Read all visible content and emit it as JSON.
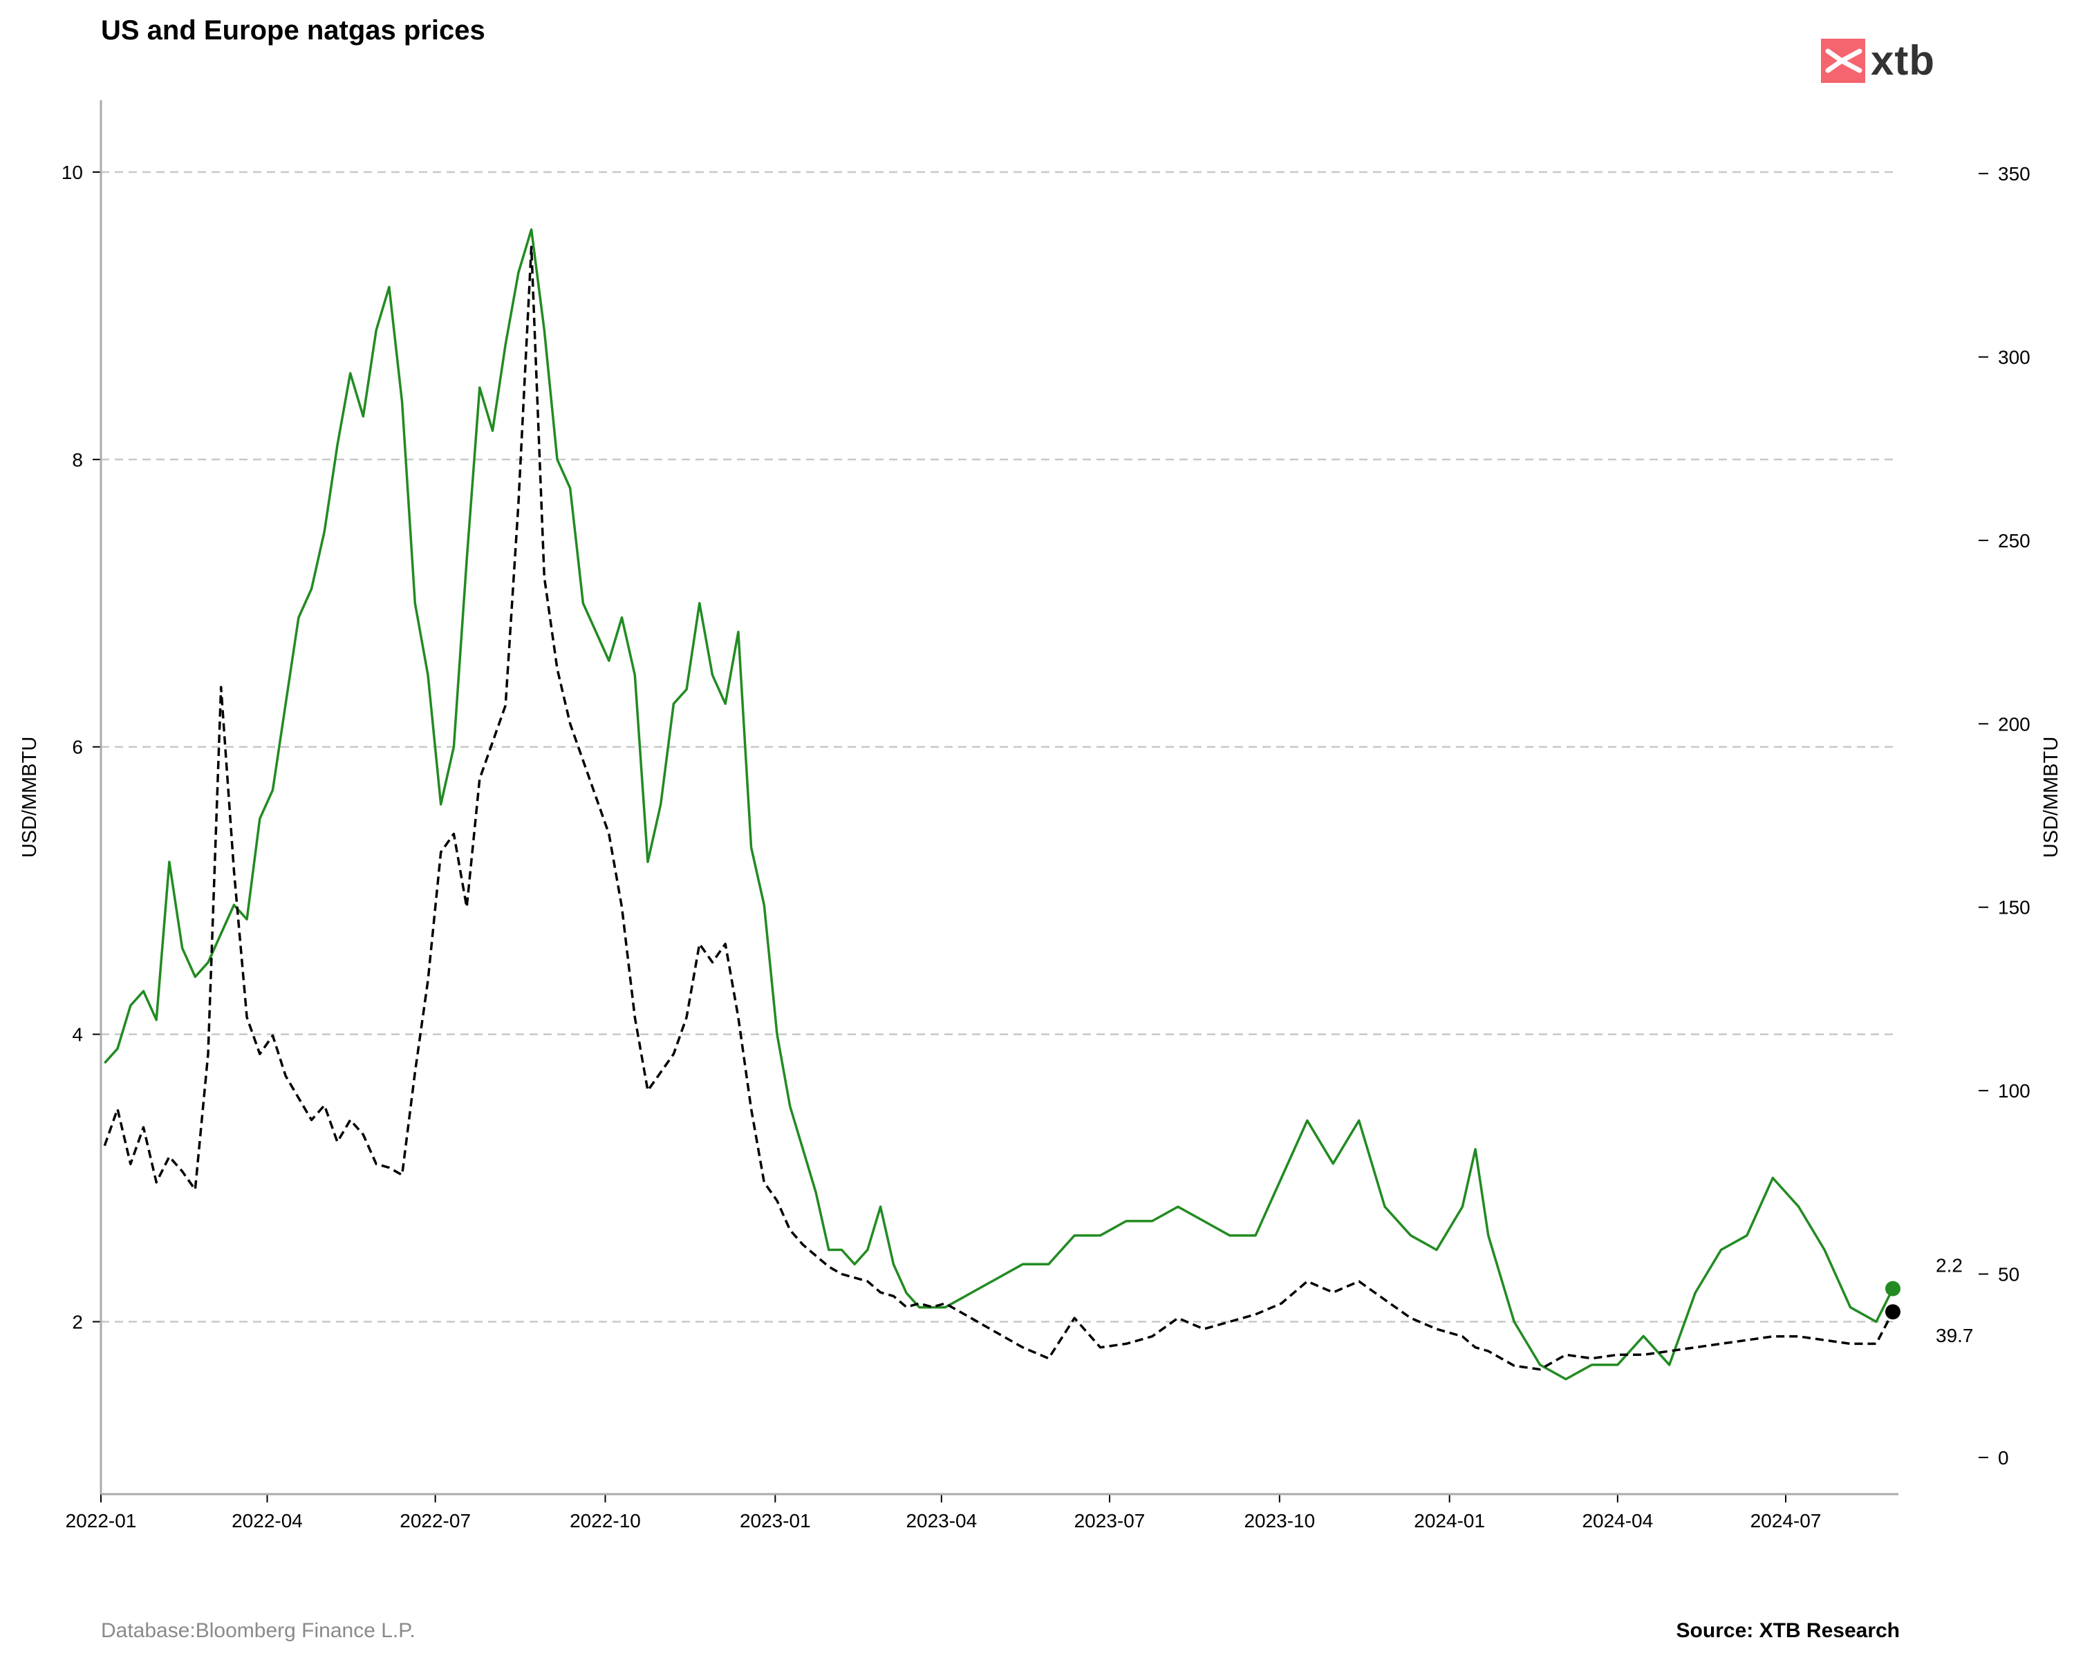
{
  "header": {
    "title": "US and Europe natgas prices"
  },
  "logo": {
    "text": "xtb",
    "color": "#f4656f"
  },
  "footer": {
    "database": "Database:Bloomberg Finance L.P.",
    "source": "Source: XTB Research"
  },
  "chart_data": {
    "type": "line",
    "title": "US and Europe natgas prices",
    "ylabel_left": "USD/MMBTU",
    "ylabel_right": "USD/MMBTU",
    "ylim_left": [
      0.8,
      10.5
    ],
    "ylim_right": [
      -10,
      370
    ],
    "xlim": [
      "2022-01-01",
      "2024-08-31"
    ],
    "yticks_left": [
      2,
      4,
      6,
      8,
      10
    ],
    "yticks_right": [
      0,
      50,
      100,
      150,
      200,
      250,
      300,
      350
    ],
    "xticks": [
      "2022-01",
      "2022-04",
      "2022-07",
      "2022-10",
      "2023-01",
      "2023-04",
      "2023-07",
      "2023-10",
      "2024-01",
      "2024-04",
      "2024-07"
    ],
    "grid": "horizontal dashed",
    "end_labels": {
      "left_series": "2.2",
      "right_series": "39.7"
    },
    "series": [
      {
        "axis": "left",
        "color": "#228b22",
        "style": "solid",
        "x": [
          "2022-01-03",
          "2022-01-10",
          "2022-01-17",
          "2022-01-24",
          "2022-01-31",
          "2022-02-07",
          "2022-02-14",
          "2022-02-21",
          "2022-02-28",
          "2022-03-07",
          "2022-03-14",
          "2022-03-21",
          "2022-03-28",
          "2022-04-04",
          "2022-04-11",
          "2022-04-18",
          "2022-04-25",
          "2022-05-02",
          "2022-05-09",
          "2022-05-16",
          "2022-05-23",
          "2022-05-30",
          "2022-06-06",
          "2022-06-13",
          "2022-06-20",
          "2022-06-27",
          "2022-07-04",
          "2022-07-11",
          "2022-07-18",
          "2022-07-25",
          "2022-08-01",
          "2022-08-08",
          "2022-08-15",
          "2022-08-22",
          "2022-08-29",
          "2022-09-05",
          "2022-09-12",
          "2022-09-19",
          "2022-09-26",
          "2022-10-03",
          "2022-10-10",
          "2022-10-17",
          "2022-10-24",
          "2022-10-31",
          "2022-11-07",
          "2022-11-14",
          "2022-11-21",
          "2022-11-28",
          "2022-12-05",
          "2022-12-12",
          "2022-12-19",
          "2022-12-26",
          "2023-01-02",
          "2023-01-09",
          "2023-01-16",
          "2023-01-23",
          "2023-01-30",
          "2023-02-06",
          "2023-02-13",
          "2023-02-20",
          "2023-02-27",
          "2023-03-06",
          "2023-03-13",
          "2023-03-20",
          "2023-03-27",
          "2023-04-03",
          "2023-04-17",
          "2023-05-01",
          "2023-05-15",
          "2023-05-29",
          "2023-06-12",
          "2023-06-26",
          "2023-07-10",
          "2023-07-24",
          "2023-08-07",
          "2023-08-21",
          "2023-09-04",
          "2023-09-18",
          "2023-10-02",
          "2023-10-16",
          "2023-10-30",
          "2023-11-13",
          "2023-11-27",
          "2023-12-11",
          "2023-12-25",
          "2024-01-08",
          "2024-01-15",
          "2024-01-22",
          "2024-02-05",
          "2024-02-19",
          "2024-03-04",
          "2024-03-18",
          "2024-04-01",
          "2024-04-15",
          "2024-04-29",
          "2024-05-13",
          "2024-05-27",
          "2024-06-10",
          "2024-06-24",
          "2024-07-08",
          "2024-07-22",
          "2024-08-05",
          "2024-08-19",
          "2024-08-28"
        ],
        "values": [
          3.8,
          3.9,
          4.2,
          4.3,
          4.1,
          5.2,
          4.6,
          4.4,
          4.5,
          4.7,
          4.9,
          4.8,
          5.5,
          5.7,
          6.3,
          6.9,
          7.1,
          7.5,
          8.1,
          8.6,
          8.3,
          8.9,
          9.2,
          8.4,
          7.0,
          6.5,
          5.6,
          6.0,
          7.3,
          8.5,
          8.2,
          8.8,
          9.3,
          9.6,
          8.9,
          8.0,
          7.8,
          7.0,
          6.8,
          6.6,
          6.9,
          6.5,
          5.2,
          5.6,
          6.3,
          6.4,
          7.0,
          6.5,
          6.3,
          6.8,
          5.3,
          4.9,
          4.0,
          3.5,
          3.2,
          2.9,
          2.5,
          2.5,
          2.4,
          2.5,
          2.8,
          2.4,
          2.2,
          2.1,
          2.1,
          2.1,
          2.2,
          2.3,
          2.4,
          2.4,
          2.6,
          2.6,
          2.7,
          2.7,
          2.8,
          2.7,
          2.6,
          2.6,
          3.0,
          3.4,
          3.1,
          3.4,
          2.8,
          2.6,
          2.5,
          2.8,
          3.2,
          2.6,
          2.0,
          1.7,
          1.6,
          1.7,
          1.7,
          1.9,
          1.7,
          2.2,
          2.5,
          2.6,
          3.0,
          2.8,
          2.5,
          2.1,
          2.0,
          2.23
        ]
      },
      {
        "axis": "right",
        "color": "#000000",
        "style": "dashed",
        "x": [
          "2022-01-03",
          "2022-01-10",
          "2022-01-17",
          "2022-01-24",
          "2022-01-31",
          "2022-02-07",
          "2022-02-14",
          "2022-02-21",
          "2022-02-28",
          "2022-03-07",
          "2022-03-14",
          "2022-03-21",
          "2022-03-28",
          "2022-04-04",
          "2022-04-11",
          "2022-04-18",
          "2022-04-25",
          "2022-05-02",
          "2022-05-09",
          "2022-05-16",
          "2022-05-23",
          "2022-05-30",
          "2022-06-06",
          "2022-06-13",
          "2022-06-20",
          "2022-06-27",
          "2022-07-04",
          "2022-07-11",
          "2022-07-18",
          "2022-07-25",
          "2022-08-01",
          "2022-08-08",
          "2022-08-15",
          "2022-08-22",
          "2022-08-29",
          "2022-09-05",
          "2022-09-12",
          "2022-09-19",
          "2022-09-26",
          "2022-10-03",
          "2022-10-10",
          "2022-10-17",
          "2022-10-24",
          "2022-10-31",
          "2022-11-07",
          "2022-11-14",
          "2022-11-21",
          "2022-11-28",
          "2022-12-05",
          "2022-12-12",
          "2022-12-19",
          "2022-12-26",
          "2023-01-02",
          "2023-01-09",
          "2023-01-16",
          "2023-01-23",
          "2023-01-30",
          "2023-02-06",
          "2023-02-13",
          "2023-02-20",
          "2023-02-27",
          "2023-03-06",
          "2023-03-13",
          "2023-03-20",
          "2023-03-27",
          "2023-04-03",
          "2023-04-17",
          "2023-05-01",
          "2023-05-15",
          "2023-05-29",
          "2023-06-12",
          "2023-06-26",
          "2023-07-10",
          "2023-07-24",
          "2023-08-07",
          "2023-08-21",
          "2023-09-04",
          "2023-09-18",
          "2023-10-02",
          "2023-10-16",
          "2023-10-30",
          "2023-11-13",
          "2023-11-27",
          "2023-12-11",
          "2023-12-25",
          "2024-01-08",
          "2024-01-15",
          "2024-01-22",
          "2024-02-05",
          "2024-02-19",
          "2024-03-04",
          "2024-03-18",
          "2024-04-01",
          "2024-04-15",
          "2024-04-29",
          "2024-05-13",
          "2024-05-27",
          "2024-06-10",
          "2024-06-24",
          "2024-07-08",
          "2024-07-22",
          "2024-08-05",
          "2024-08-19",
          "2024-08-28"
        ],
        "values": [
          85,
          95,
          80,
          90,
          75,
          82,
          78,
          73,
          110,
          210,
          160,
          120,
          110,
          115,
          104,
          98,
          92,
          96,
          86,
          92,
          88,
          80,
          79,
          77,
          105,
          130,
          165,
          170,
          150,
          185,
          195,
          205,
          260,
          330,
          240,
          215,
          200,
          190,
          180,
          170,
          150,
          120,
          100,
          105,
          110,
          120,
          140,
          135,
          140,
          120,
          95,
          75,
          70,
          62,
          58,
          55,
          52,
          50,
          49,
          48,
          45,
          44,
          41,
          42,
          41,
          42,
          38,
          34,
          30,
          27,
          38,
          30,
          31,
          33,
          38,
          35,
          37,
          39,
          42,
          48,
          45,
          48,
          43,
          38,
          35,
          33,
          30,
          29,
          25,
          24,
          28,
          27,
          28,
          28,
          29,
          30,
          31,
          32,
          33,
          33,
          32,
          31,
          31,
          39.7
        ]
      }
    ]
  }
}
